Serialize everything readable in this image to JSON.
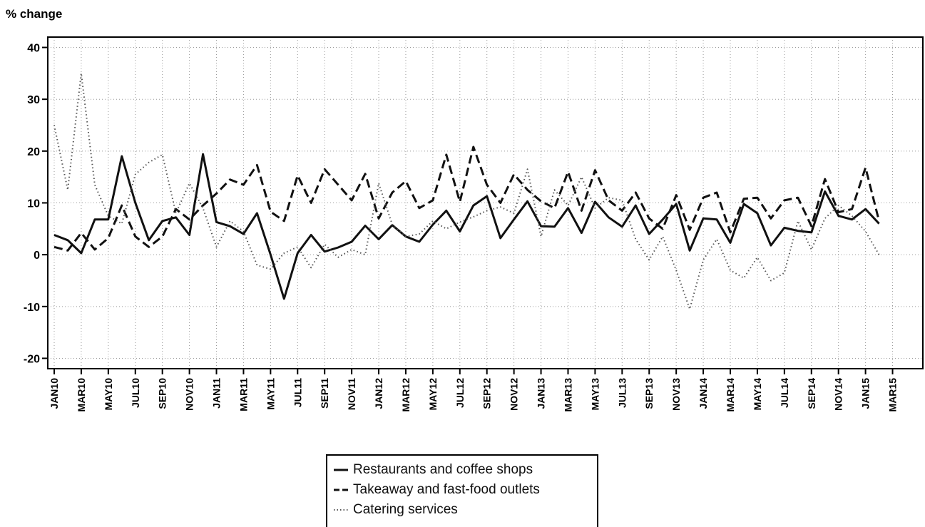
{
  "chart_data": {
    "type": "line",
    "ylabel": "% change",
    "ylim": [
      -22,
      42
    ],
    "yticks": [
      40,
      30,
      20,
      10,
      0,
      -10,
      -20
    ],
    "grid": true,
    "legend_position": "bottom-center",
    "x": [
      "JAN10",
      "FEB10",
      "MAR10",
      "APR10",
      "MAY10",
      "JUN10",
      "JUL10",
      "AUG10",
      "SEP10",
      "OCT10",
      "NOV10",
      "DEC10",
      "JAN11",
      "FEB11",
      "MAR11",
      "APR11",
      "MAY11",
      "JUN11",
      "JUL11",
      "AUG11",
      "SEP11",
      "OCT11",
      "NOV11",
      "DEC11",
      "JAN12",
      "FEB12",
      "MAR12",
      "APR12",
      "MAY12",
      "JUN12",
      "JUL12",
      "AUG12",
      "SEP12",
      "OCT12",
      "NOV12",
      "DEC12",
      "JAN13",
      "FEB13",
      "MAR13",
      "APR13",
      "MAY13",
      "JUN13",
      "JUL13",
      "AUG13",
      "SEP13",
      "OCT13",
      "NOV13",
      "DEC13",
      "JAN14",
      "FEB14",
      "MAR14",
      "APR14",
      "MAY14",
      "JUN14",
      "JUL14",
      "AUG14",
      "SEP14",
      "OCT14",
      "NOV14",
      "DEC14",
      "JAN15",
      "FEB15"
    ],
    "xtick_labels": [
      "JAN10",
      "MAR10",
      "MAY10",
      "JUL10",
      "SEP10",
      "NOV10",
      "JAN11",
      "MAR11",
      "MAY11",
      "JUL11",
      "SEP11",
      "NOV11",
      "JAN12",
      "MAR12",
      "MAY12",
      "JUL12",
      "SEP12",
      "NOV12",
      "JAN13",
      "MAR13",
      "MAY13",
      "JUL13",
      "SEP13",
      "NOV13",
      "JAN14",
      "MAR14",
      "MAY14",
      "JUL14",
      "SEP14",
      "NOV14",
      "JAN15",
      "MAR15"
    ],
    "series": [
      {
        "name": "Restaurants and coffee shops",
        "style": "solid",
        "color": "#111111",
        "values": [
          3.8,
          2.8,
          0.3,
          6.8,
          6.8,
          19.0,
          10.0,
          2.8,
          6.5,
          7.2,
          3.8,
          19.4,
          6.3,
          5.5,
          4.0,
          8.0,
          0.0,
          -8.5,
          0.3,
          3.8,
          0.6,
          1.4,
          2.5,
          5.6,
          3.0,
          5.7,
          3.5,
          2.5,
          5.8,
          8.5,
          4.5,
          9.5,
          11.3,
          3.2,
          6.8,
          10.3,
          5.5,
          5.4,
          9.0,
          4.2,
          10.2,
          7.2,
          5.4,
          9.5,
          4.0,
          6.8,
          9.8,
          0.8,
          7.0,
          6.8,
          2.3,
          9.8,
          8.0,
          1.8,
          5.2,
          4.6,
          4.3,
          12.2,
          7.5,
          6.8,
          8.8,
          6.0
        ]
      },
      {
        "name": "Takeaway and fast-food outlets",
        "style": "dashed",
        "color": "#111111",
        "values": [
          1.5,
          0.8,
          4.2,
          1.0,
          3.2,
          9.5,
          3.5,
          1.5,
          3.5,
          8.8,
          6.8,
          9.5,
          11.8,
          14.5,
          13.5,
          17.3,
          8.3,
          6.5,
          15.3,
          10.0,
          16.5,
          13.5,
          10.5,
          15.6,
          7.0,
          12.0,
          14.2,
          9.0,
          10.5,
          19.3,
          10.2,
          20.8,
          13.5,
          10.0,
          15.5,
          12.5,
          10.3,
          9.0,
          16.0,
          8.5,
          16.3,
          10.5,
          8.5,
          12.0,
          7.0,
          5.0,
          11.5,
          4.8,
          11.0,
          12.0,
          4.3,
          10.8,
          11.0,
          7.0,
          10.5,
          11.0,
          5.5,
          14.6,
          8.2,
          8.8,
          16.8,
          6.5
        ]
      },
      {
        "name": "Catering services",
        "style": "dotted",
        "color": "#555555",
        "values": [
          25.0,
          12.5,
          35.0,
          13.5,
          7.5,
          6.0,
          15.5,
          17.8,
          19.3,
          8.0,
          13.8,
          9.0,
          1.5,
          6.5,
          4.5,
          -2.0,
          -2.8,
          0.3,
          1.5,
          -2.5,
          2.0,
          -0.5,
          1.0,
          0.0,
          13.8,
          5.8,
          3.5,
          4.0,
          6.5,
          5.0,
          6.3,
          7.3,
          8.5,
          9.2,
          8.0,
          16.5,
          3.5,
          12.5,
          9.5,
          15.0,
          9.0,
          11.0,
          10.5,
          3.0,
          -1.0,
          3.5,
          -3.0,
          -10.5,
          -1.0,
          3.0,
          -3.0,
          -4.5,
          -0.5,
          -5.0,
          -3.5,
          6.5,
          1.0,
          7.0,
          9.5,
          7.5,
          4.5,
          0.0
        ]
      }
    ]
  }
}
